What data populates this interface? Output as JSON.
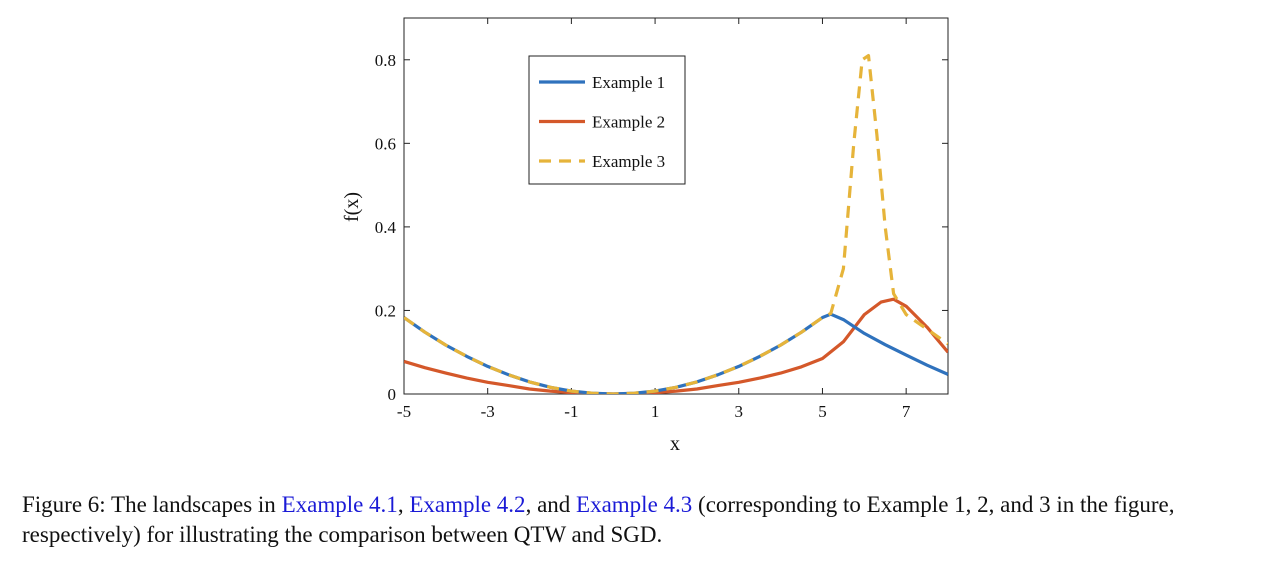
{
  "chart_data": {
    "type": "line",
    "xlabel": "x",
    "ylabel": "f(x)",
    "xlim": [
      -5,
      8
    ],
    "ylim": [
      0,
      0.9
    ],
    "xticks": [
      -5,
      -3,
      -1,
      1,
      3,
      5,
      7
    ],
    "xtick_labels": [
      "-5",
      "-3",
      "-1",
      "1",
      "3",
      "5",
      "7"
    ],
    "yticks": [
      0,
      0.2,
      0.4,
      0.6,
      0.8
    ],
    "ytick_labels": [
      "0",
      "0.2",
      "0.4",
      "0.6",
      "0.8"
    ],
    "grid": false,
    "legend_position": "top-center",
    "series": [
      {
        "name": "Example 1",
        "color": "#2f72bd",
        "style": "solid",
        "x": [
          -5,
          -4.5,
          -4,
          -3.5,
          -3,
          -2.5,
          -2,
          -1.5,
          -1,
          -0.5,
          0,
          0.5,
          1,
          1.5,
          2,
          2.5,
          3,
          3.5,
          4,
          4.5,
          5,
          5.2,
          5.5,
          6,
          6.5,
          7,
          7.5,
          8
        ],
        "y": [
          0.183,
          0.148,
          0.117,
          0.09,
          0.066,
          0.046,
          0.029,
          0.016,
          0.007,
          0.002,
          0,
          0.002,
          0.007,
          0.016,
          0.029,
          0.046,
          0.066,
          0.09,
          0.117,
          0.148,
          0.183,
          0.191,
          0.178,
          0.145,
          0.118,
          0.093,
          0.069,
          0.047
        ]
      },
      {
        "name": "Example 2",
        "color": "#d4582a",
        "style": "solid",
        "x": [
          -5,
          -4.5,
          -4,
          -3.5,
          -3,
          -2.5,
          -2,
          -1.5,
          -1,
          -0.5,
          0,
          0.5,
          1,
          1.5,
          2,
          2.5,
          3,
          3.5,
          4,
          4.5,
          5,
          5.5,
          6,
          6.4,
          6.7,
          7,
          7.5,
          8
        ],
        "y": [
          0.078,
          0.063,
          0.05,
          0.038,
          0.028,
          0.02,
          0.012,
          0.007,
          0.003,
          0.001,
          0,
          0.001,
          0.003,
          0.007,
          0.012,
          0.02,
          0.028,
          0.038,
          0.05,
          0.065,
          0.085,
          0.125,
          0.19,
          0.22,
          0.227,
          0.21,
          0.16,
          0.1
        ]
      },
      {
        "name": "Example 3",
        "color": "#e6b43a",
        "style": "dashed",
        "x": [
          -5,
          -4.5,
          -4,
          -3.5,
          -3,
          -2.5,
          -2,
          -1.5,
          -1,
          -0.5,
          0,
          0.5,
          1,
          1.5,
          2,
          2.5,
          3,
          3.5,
          4,
          4.5,
          5,
          5.2,
          5.5,
          5.75,
          5.95,
          6.1,
          6.3,
          6.5,
          6.7,
          7,
          7.5,
          8
        ],
        "y": [
          0.183,
          0.148,
          0.117,
          0.09,
          0.066,
          0.046,
          0.029,
          0.016,
          0.007,
          0.002,
          0,
          0.002,
          0.007,
          0.016,
          0.029,
          0.046,
          0.066,
          0.09,
          0.117,
          0.148,
          0.183,
          0.193,
          0.3,
          0.6,
          0.8,
          0.81,
          0.62,
          0.4,
          0.24,
          0.19,
          0.155,
          0.12
        ]
      }
    ]
  },
  "caption": {
    "prefix": "Figure 6: The landscapes in ",
    "ref1": "Example 4.1",
    "sep1": ", ",
    "ref2": "Example 4.2",
    "sep2": ", and ",
    "ref3": "Example 4.3",
    "suffix": " (corresponding to Example 1, 2, and 3 in the figure, respectively) for illustrating the comparison between QTW and SGD."
  }
}
